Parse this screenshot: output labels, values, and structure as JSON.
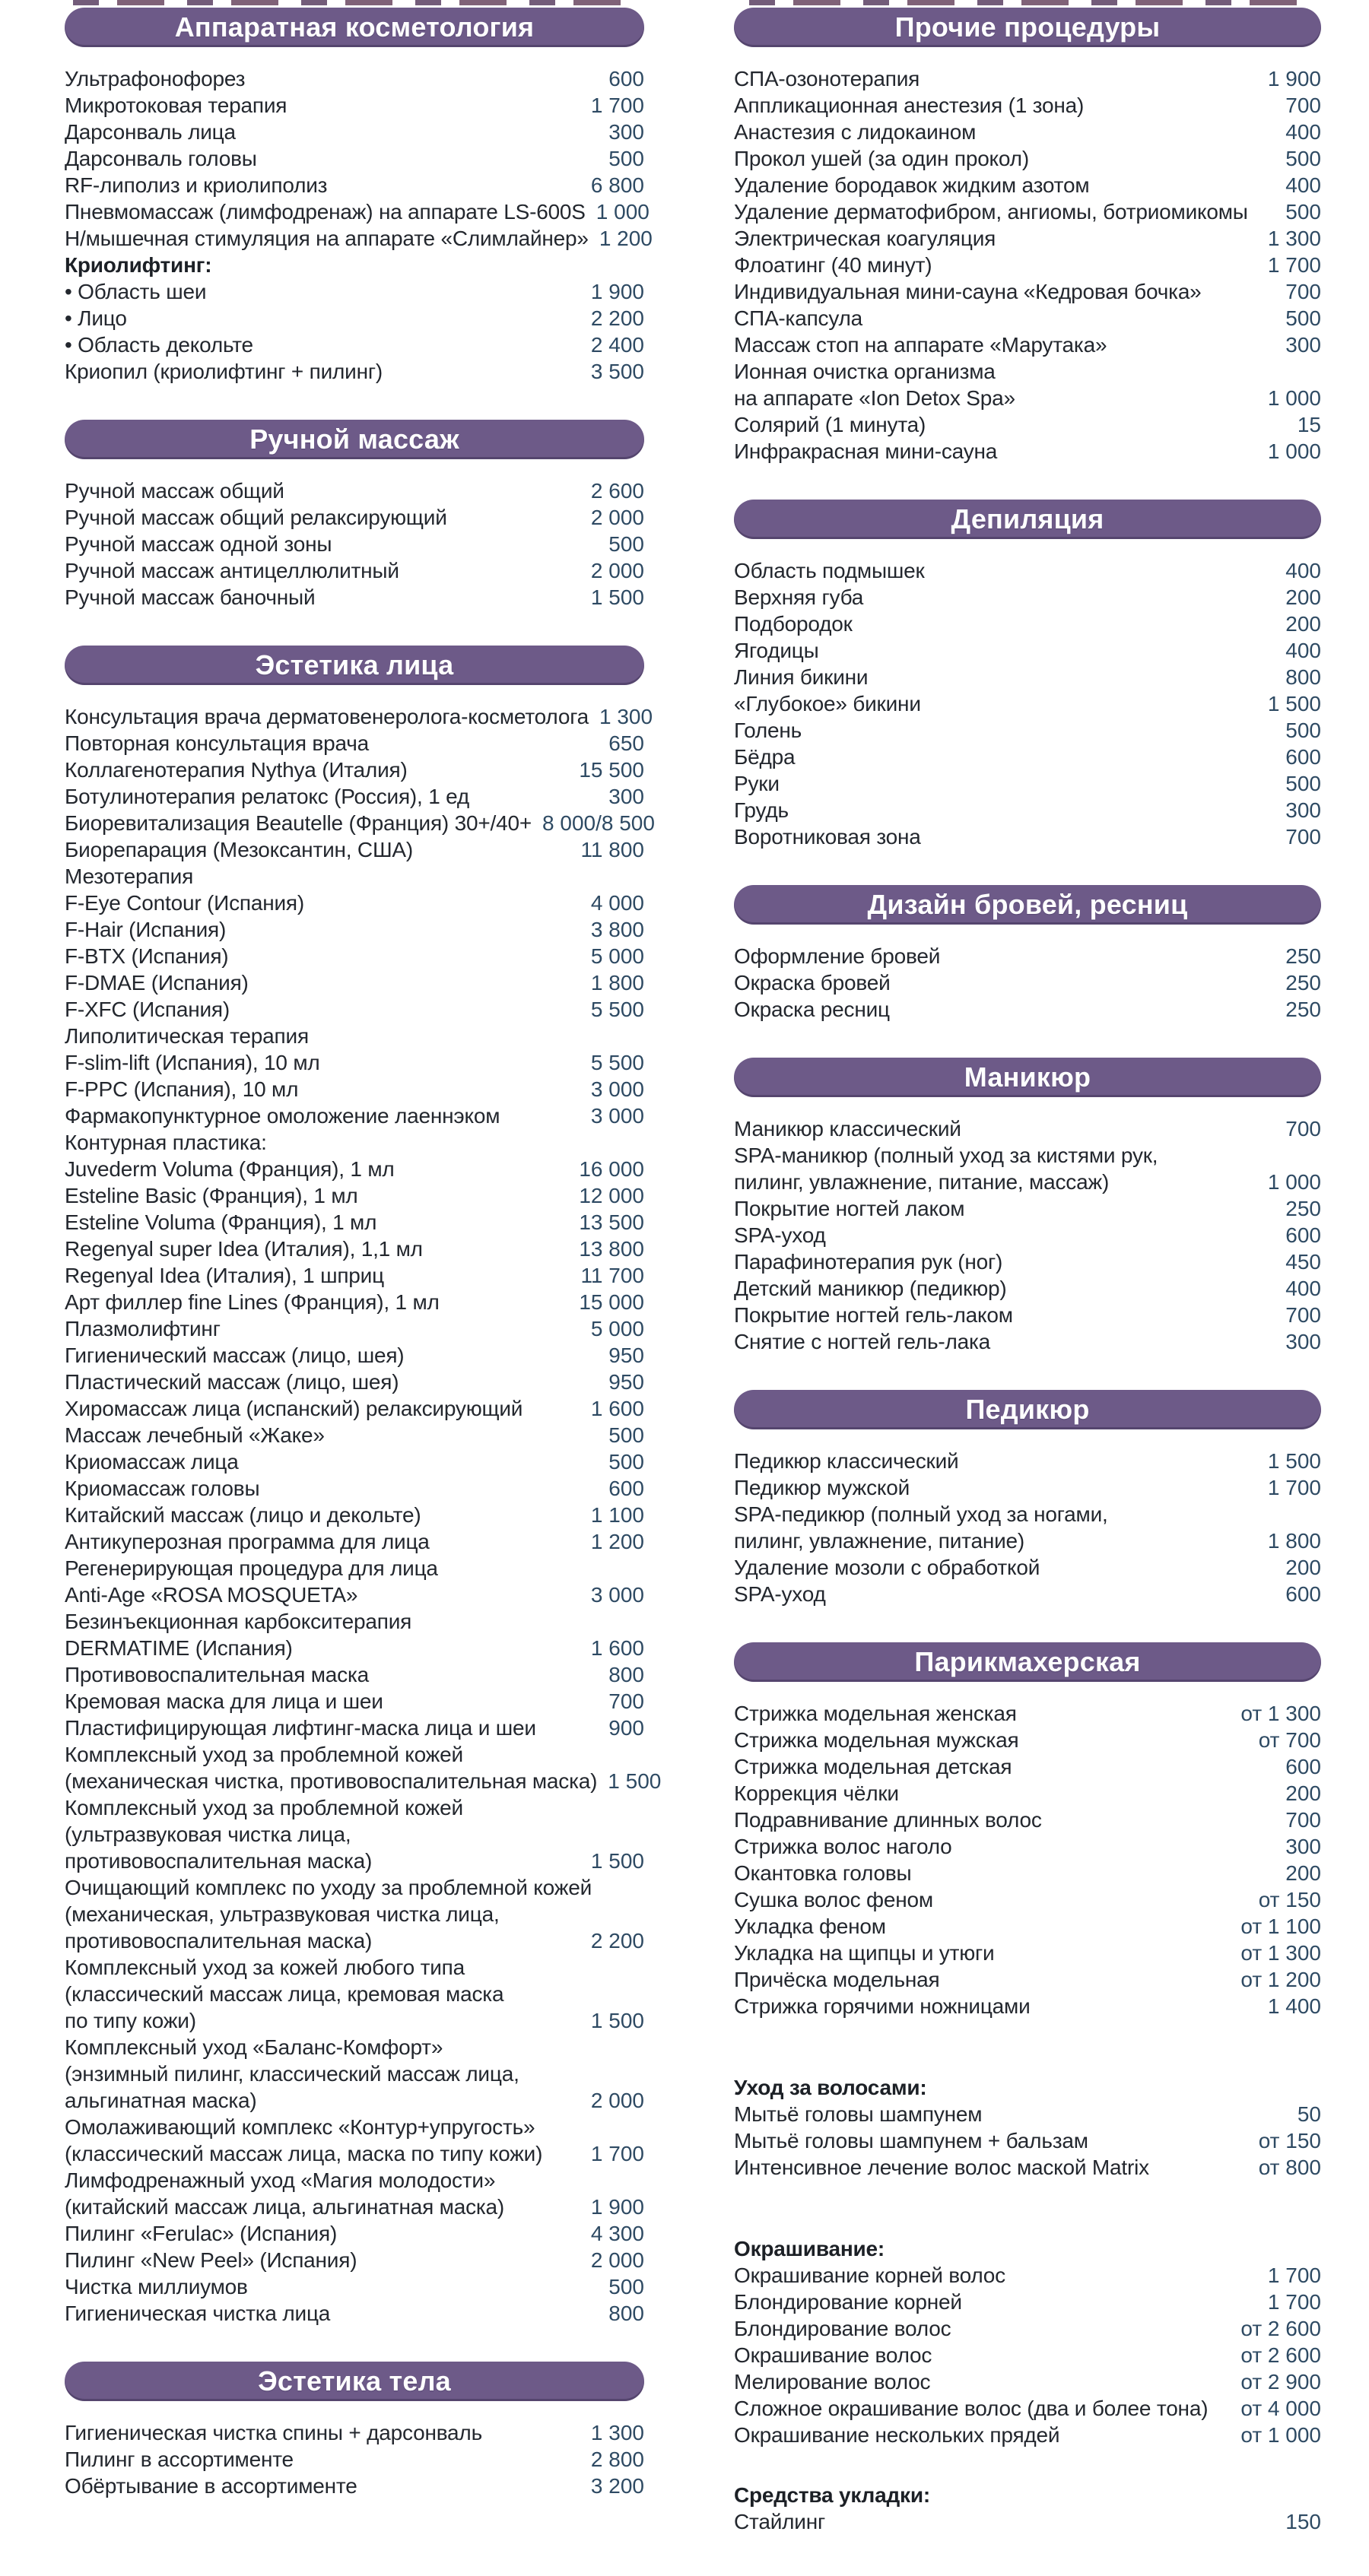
{
  "meta": {
    "accent_color": "#6d5a88",
    "header_text_color": "#ffffff",
    "item_text_color": "#23272e",
    "price_color": "#2e4a63",
    "background": "#ffffff",
    "currency_note": ""
  },
  "columns": [
    {
      "name": "left",
      "sections": [
        {
          "title": "Аппаратная косметология",
          "items": [
            {
              "label": "Ультрафонофорез",
              "price": "600"
            },
            {
              "label": "Микротоковая терапия",
              "price": "1 700"
            },
            {
              "label": "Дарсонваль лица",
              "price": "300"
            },
            {
              "label": "Дарсонваль головы",
              "price": "500"
            },
            {
              "label": "RF-липолиз и криолиполиз",
              "price": "6 800"
            },
            {
              "label": "Пневмомассаж (лимфодренаж) на аппарате LS-600S",
              "price": "1 000"
            },
            {
              "label": "Н/мышечная стимуляция на аппарате «Слимлайнер»",
              "price": "1 200"
            },
            {
              "label": "Криолифтинг:",
              "bold": true
            },
            {
              "label": "• Область шеи",
              "price": "1 900"
            },
            {
              "label": "• Лицо",
              "price": "2 200"
            },
            {
              "label": "• Область декольте",
              "price": "2 400"
            },
            {
              "label": "Криопил (криолифтинг + пилинг)",
              "price": "3 500"
            }
          ]
        },
        {
          "title": "Ручной массаж",
          "items": [
            {
              "label": "Ручной массаж общий",
              "price": "2 600"
            },
            {
              "label": "Ручной массаж общий релаксирующий",
              "price": "2 000"
            },
            {
              "label": "Ручной массаж одной зоны",
              "price": "500"
            },
            {
              "label": "Ручной массаж антицеллюлитный",
              "price": "2 000"
            },
            {
              "label": "Ручной массаж баночный",
              "price": "1 500"
            }
          ]
        },
        {
          "title": "Эстетика лица",
          "items": [
            {
              "label": "Консультация врача дерматовенеролога-косметолога",
              "price": "1 300"
            },
            {
              "label": "Повторная консультация врача",
              "price": "650"
            },
            {
              "label": "Коллагенотерапия Nythya (Италия)",
              "price": "15 500"
            },
            {
              "label": "Ботулинотерапия релатокс (Россия), 1 ед",
              "price": "300"
            },
            {
              "label": "Биоревитализация Beautelle (Франция) 30+/40+",
              "price": "8 000/8 500"
            },
            {
              "label": "Биорепарация (Мезоксантин, США)",
              "price": "11 800"
            },
            {
              "label": "Мезотерапия"
            },
            {
              "label": "F-Eye Contour (Испания)",
              "price": "4 000"
            },
            {
              "label": "F-Hair (Испания)",
              "price": "3 800"
            },
            {
              "label": "F-BTX (Испания)",
              "price": "5 000"
            },
            {
              "label": "F-DMAE (Испания)",
              "price": "1 800"
            },
            {
              "label": "F-XFC (Испания)",
              "price": "5 500"
            },
            {
              "label": "Липолитическая терапия"
            },
            {
              "label": "F-slim-lift (Испания), 10 мл",
              "price": "5 500"
            },
            {
              "label": "F-PPC (Испания), 10 мл",
              "price": "3 000"
            },
            {
              "label": "Фармакопунктурное омоложение лаеннэком",
              "price": "3 000"
            },
            {
              "label": "Контурная пластика:"
            },
            {
              "label": "Juvederm Voluma (Франция), 1 мл",
              "price": "16 000"
            },
            {
              "label": "Esteline Basic (Франция), 1 мл",
              "price": "12 000"
            },
            {
              "label": "Esteline Voluma (Франция), 1 мл",
              "price": "13 500"
            },
            {
              "label": "Regenyal super Idea (Италия), 1,1 мл",
              "price": "13 800"
            },
            {
              "label": "Regenyal Idea (Италия), 1 шприц",
              "price": "11 700"
            },
            {
              "label": "Арт филлер fine Lines (Франция), 1 мл",
              "price": "15 000"
            },
            {
              "label": "Плазмолифтинг",
              "price": "5 000"
            },
            {
              "label": "Гигиенический массаж (лицо, шея)",
              "price": "950"
            },
            {
              "label": "Пластический массаж (лицо, шея)",
              "price": "950"
            },
            {
              "label": "Хиромассаж лица (испанский) релаксирующий",
              "price": "1 600"
            },
            {
              "label": "Массаж лечебный «Жаке»",
              "price": "500"
            },
            {
              "label": "Криомассаж лица",
              "price": "500"
            },
            {
              "label": "Криомассаж головы",
              "price": "600"
            },
            {
              "label": "Китайский массаж (лицо и декольте)",
              "price": "1 100"
            },
            {
              "label": "Антикуперозная программа для лица",
              "price": "1 200"
            },
            {
              "label": "Регенерирующая процедура для лица"
            },
            {
              "label": "Anti-Age «ROSA MOSQUETA»",
              "price": "3 000"
            },
            {
              "label": "Безинъекционная карбокситерапия"
            },
            {
              "label": "DERMATIME (Испания)",
              "price": "1 600"
            },
            {
              "label": "Противовоспалительная маска",
              "price": "800"
            },
            {
              "label": "Кремовая маска для лица и шеи",
              "price": "700"
            },
            {
              "label": "Пластифицирующая лифтинг-маска лица и шеи",
              "price": "900"
            },
            {
              "label": "Комплексный уход за проблемной кожей"
            },
            {
              "label": "(механическая чистка, противовоспалительная маска)",
              "price": "1 500"
            },
            {
              "label": "Комплексный уход за проблемной кожей"
            },
            {
              "label": "(ультразвуковая чистка лица,"
            },
            {
              "label": "противовоспалительная маска)",
              "price": "1 500"
            },
            {
              "label": "Очищающий комплекс по уходу за проблемной кожей"
            },
            {
              "label": "(механическая, ультразвуковая чистка лица,"
            },
            {
              "label": "противовоспалительная маска)",
              "price": "2 200"
            },
            {
              "label": "Комплексный уход за кожей любого типа"
            },
            {
              "label": "(классический массаж лица, кремовая маска"
            },
            {
              "label": "по типу кожи)",
              "price": "1 500"
            },
            {
              "label": "Комплексный уход «Баланс-Комфорт»"
            },
            {
              "label": "(энзимный пилинг, классический массаж лица,"
            },
            {
              "label": "альгинатная маска)",
              "price": "2 000"
            },
            {
              "label": "Омолаживающий комплекс «Контур+упругость»"
            },
            {
              "label": "(классический массаж лица, маска по типу кожи)",
              "price": "1 700"
            },
            {
              "label": "Лимфодренажный уход «Магия молодости»"
            },
            {
              "label": "(китайский массаж лица, альгинатная маска)",
              "price": "1 900"
            },
            {
              "label": "Пилинг «Ferulac» (Испания)",
              "price": "4 300"
            },
            {
              "label": "Пилинг «New Peel» (Испания)",
              "price": "2 000"
            },
            {
              "label": "Чистка миллиумов",
              "price": "500"
            },
            {
              "label": "Гигиеническая чистка лица",
              "price": "800"
            }
          ]
        },
        {
          "title": "Эстетика тела",
          "items": [
            {
              "label": "Гигиеническая чистка спины + дарсонваль",
              "price": "1 300"
            },
            {
              "label": "Пилинг в ассортименте",
              "price": "2 800"
            },
            {
              "label": "Обёртывание в ассортименте",
              "price": "3 200"
            }
          ]
        }
      ]
    },
    {
      "name": "right",
      "sections": [
        {
          "title": "Прочие процедуры",
          "items": [
            {
              "label": "СПА-озонотерапия",
              "price": "1 900"
            },
            {
              "label": "Аппликационная анестезия (1 зона)",
              "price": "700"
            },
            {
              "label": "Анастезия с лидокаином",
              "price": "400"
            },
            {
              "label": "Прокол ушей (за один прокол)",
              "price": "500"
            },
            {
              "label": "Удаление бородавок жидким азотом",
              "price": "400"
            },
            {
              "label": "Удаление дерматофибром, ангиомы, ботриомикомы",
              "price": "500"
            },
            {
              "label": "Электрическая коагуляция",
              "price": "1 300"
            },
            {
              "label": "Флоатинг (40 минут)",
              "price": "1 700"
            },
            {
              "label": "Индивидуальная мини-сауна «Кедровая бочка»",
              "price": "700"
            },
            {
              "label": "СПА-капсула",
              "price": "500"
            },
            {
              "label": "Массаж стоп на аппарате «Марутака»",
              "price": "300"
            },
            {
              "label": "Ионная очистка организма"
            },
            {
              "label": "на аппарате «Ion Detox Spa»",
              "price": "1 000"
            },
            {
              "label": "Солярий (1 минута)",
              "price": "15"
            },
            {
              "label": "Инфракрасная мини-сауна",
              "price": "1 000"
            }
          ]
        },
        {
          "title": "Депиляция",
          "items": [
            {
              "label": "Область подмышек",
              "price": "400"
            },
            {
              "label": "Верхняя губа",
              "price": "200"
            },
            {
              "label": "Подбородок",
              "price": "200"
            },
            {
              "label": "Ягодицы",
              "price": "400"
            },
            {
              "label": "Линия бикини",
              "price": "800"
            },
            {
              "label": "«Глубокое» бикини",
              "price": "1 500"
            },
            {
              "label": "Голень",
              "price": "500"
            },
            {
              "label": "Бёдра",
              "price": "600"
            },
            {
              "label": "Руки",
              "price": "500"
            },
            {
              "label": "Грудь",
              "price": "300"
            },
            {
              "label": "Воротниковая зона",
              "price": "700"
            }
          ]
        },
        {
          "title": "Дизайн бровей, ресниц",
          "items": [
            {
              "label": "Оформление бровей",
              "price": "250"
            },
            {
              "label": "Окраска бровей",
              "price": "250"
            },
            {
              "label": "Окраска ресниц",
              "price": "250"
            }
          ]
        },
        {
          "title": "Маникюр",
          "items": [
            {
              "label": "Маникюр классический",
              "price": "700"
            },
            {
              "label": "SPA-маникюр (полный уход за кистями рук,"
            },
            {
              "label": "пилинг, увлажнение, питание, массаж)",
              "price": "1 000"
            },
            {
              "label": "Покрытие ногтей лаком",
              "price": "250"
            },
            {
              "label": "SPA-уход",
              "price": "600"
            },
            {
              "label": "Парафинотерапия рук (ног)",
              "price": "450"
            },
            {
              "label": "Детский маникюр (педикюр)",
              "price": "400"
            },
            {
              "label": "Покрытие ногтей гель-лаком",
              "price": "700"
            },
            {
              "label": "Снятие с ногтей гель-лака",
              "price": "300"
            }
          ]
        },
        {
          "title": "Педикюр",
          "items": [
            {
              "label": "Педикюр классический",
              "price": "1 500"
            },
            {
              "label": "Педикюр мужской",
              "price": "1 700"
            },
            {
              "label": "SPA-педикюр (полный уход за ногами,"
            },
            {
              "label": "пилинг, увлажнение, питание)",
              "price": "1 800"
            },
            {
              "label": "Удаление мозоли с обработкой",
              "price": "200"
            },
            {
              "label": "SPA-уход",
              "price": "600"
            }
          ]
        },
        {
          "title": "Парикмахерская",
          "items": [
            {
              "label": "Стрижка модельная женская",
              "price": "от 1 300"
            },
            {
              "label": "Стрижка модельная мужская",
              "price": "от 700"
            },
            {
              "label": "Стрижка модельная детская",
              "price": "600"
            },
            {
              "label": "Коррекция чёлки",
              "price": "200"
            },
            {
              "label": "Подравнивание длинных волос",
              "price": "700"
            },
            {
              "label": "Стрижка волос наголо",
              "price": "300"
            },
            {
              "label": "Окантовка головы",
              "price": "200"
            },
            {
              "label": "Сушка волос феном",
              "price": "от 150"
            },
            {
              "label": "Укладка феном",
              "price": "от 1 100"
            },
            {
              "label": "Укладка на щипцы и утюги",
              "price": "от 1 300"
            },
            {
              "label": "Причёска модельная",
              "price": "от 1 200"
            },
            {
              "label": "Стрижка горячими ножницами",
              "price": "1 400"
            },
            {
              "label": "Уход за волосами:",
              "bold": true,
              "gap": true
            },
            {
              "label": "Мытьё головы шампунем",
              "price": "50"
            },
            {
              "label": "Мытьё головы шампунем + бальзам",
              "price": "от 150"
            },
            {
              "label": "Интенсивное лечение волос маской Matrix",
              "price": "от 800"
            },
            {
              "label": "Окрашивание:",
              "bold": true,
              "gap": true
            },
            {
              "label": "Окрашивание корней волос",
              "price": "1 700"
            },
            {
              "label": "Блондирование корней",
              "price": "1 700"
            },
            {
              "label": "Блондирование волос",
              "price": "от 2 600"
            },
            {
              "label": "Окрашивание волос",
              "price": "от 2 600"
            },
            {
              "label": "Мелирование волос",
              "price": "от 2 900"
            },
            {
              "label": "Сложное окрашивание волос (два и более тона)",
              "price": "от 4 000"
            },
            {
              "label": "Окрашивание нескольких прядей",
              "price": "от 1 000"
            },
            {
              "label": "Средства укладки:",
              "bold": true,
              "gap_small": true
            },
            {
              "label": "Стайлинг",
              "price": "150"
            }
          ]
        }
      ]
    }
  ]
}
